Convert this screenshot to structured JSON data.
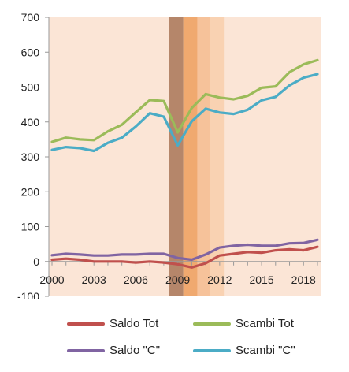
{
  "chart_data": {
    "type": "line",
    "title": "",
    "xlabel": "",
    "ylabel": "",
    "xlim": [
      2000,
      2019
    ],
    "ylim": [
      -100,
      700
    ],
    "y_ticks": [
      700,
      600,
      500,
      400,
      300,
      200,
      100,
      0,
      -100
    ],
    "x_ticks": [
      2000,
      2003,
      2006,
      2009,
      2012,
      2015,
      2018
    ],
    "y_tick_labels": [
      "700",
      "600",
      "500",
      "400",
      "300",
      "200",
      "100",
      "0",
      "-100"
    ],
    "x_tick_labels": [
      "2000",
      "2003",
      "2006",
      "2009",
      "2012",
      "2015",
      "2018"
    ],
    "grid": false,
    "legend_position": "bottom",
    "background_color": "#fbe5d6",
    "shaded_bands": [
      {
        "from": 2008.4,
        "to": 2009.4,
        "color": "#b5866a"
      },
      {
        "from": 2009.4,
        "to": 2010.4,
        "color": "#f0a96f"
      },
      {
        "from": 2010.4,
        "to": 2011.3,
        "color": "#f6c29a"
      },
      {
        "from": 2011.3,
        "to": 2012.3,
        "color": "#f9d2b2"
      }
    ],
    "x": [
      2000,
      2001,
      2002,
      2003,
      2004,
      2005,
      2006,
      2007,
      2008,
      2009,
      2010,
      2011,
      2012,
      2013,
      2014,
      2015,
      2016,
      2017,
      2018,
      2019
    ],
    "series": [
      {
        "name": "Saldo Tot",
        "color": "#c0504d",
        "values": [
          5,
          8,
          5,
          0,
          0,
          0,
          -3,
          0,
          -3,
          -8,
          -17,
          -5,
          17,
          22,
          27,
          25,
          32,
          35,
          32,
          42
        ]
      },
      {
        "name": "Scambi Tot",
        "color": "#9bbb59",
        "values": [
          343,
          355,
          350,
          348,
          373,
          392,
          428,
          463,
          460,
          370,
          440,
          480,
          470,
          465,
          475,
          498,
          502,
          543,
          565,
          577
        ]
      },
      {
        "name": "Saldo \"C\"",
        "color": "#8064a2",
        "values": [
          18,
          22,
          20,
          17,
          17,
          20,
          20,
          22,
          22,
          10,
          5,
          20,
          40,
          45,
          48,
          45,
          45,
          52,
          53,
          62
        ]
      },
      {
        "name": "Scambi \"C\"",
        "color": "#4bacc6",
        "values": [
          320,
          328,
          325,
          317,
          340,
          355,
          387,
          425,
          415,
          333,
          402,
          438,
          427,
          423,
          435,
          462,
          472,
          505,
          527,
          537
        ]
      }
    ]
  },
  "legend": [
    {
      "label": "Saldo Tot",
      "color": "#c0504d"
    },
    {
      "label": "Scambi Tot",
      "color": "#9bbb59"
    },
    {
      "label": "Saldo \"C\"",
      "color": "#8064a2"
    },
    {
      "label": "Scambi \"C\"",
      "color": "#4bacc6"
    }
  ]
}
